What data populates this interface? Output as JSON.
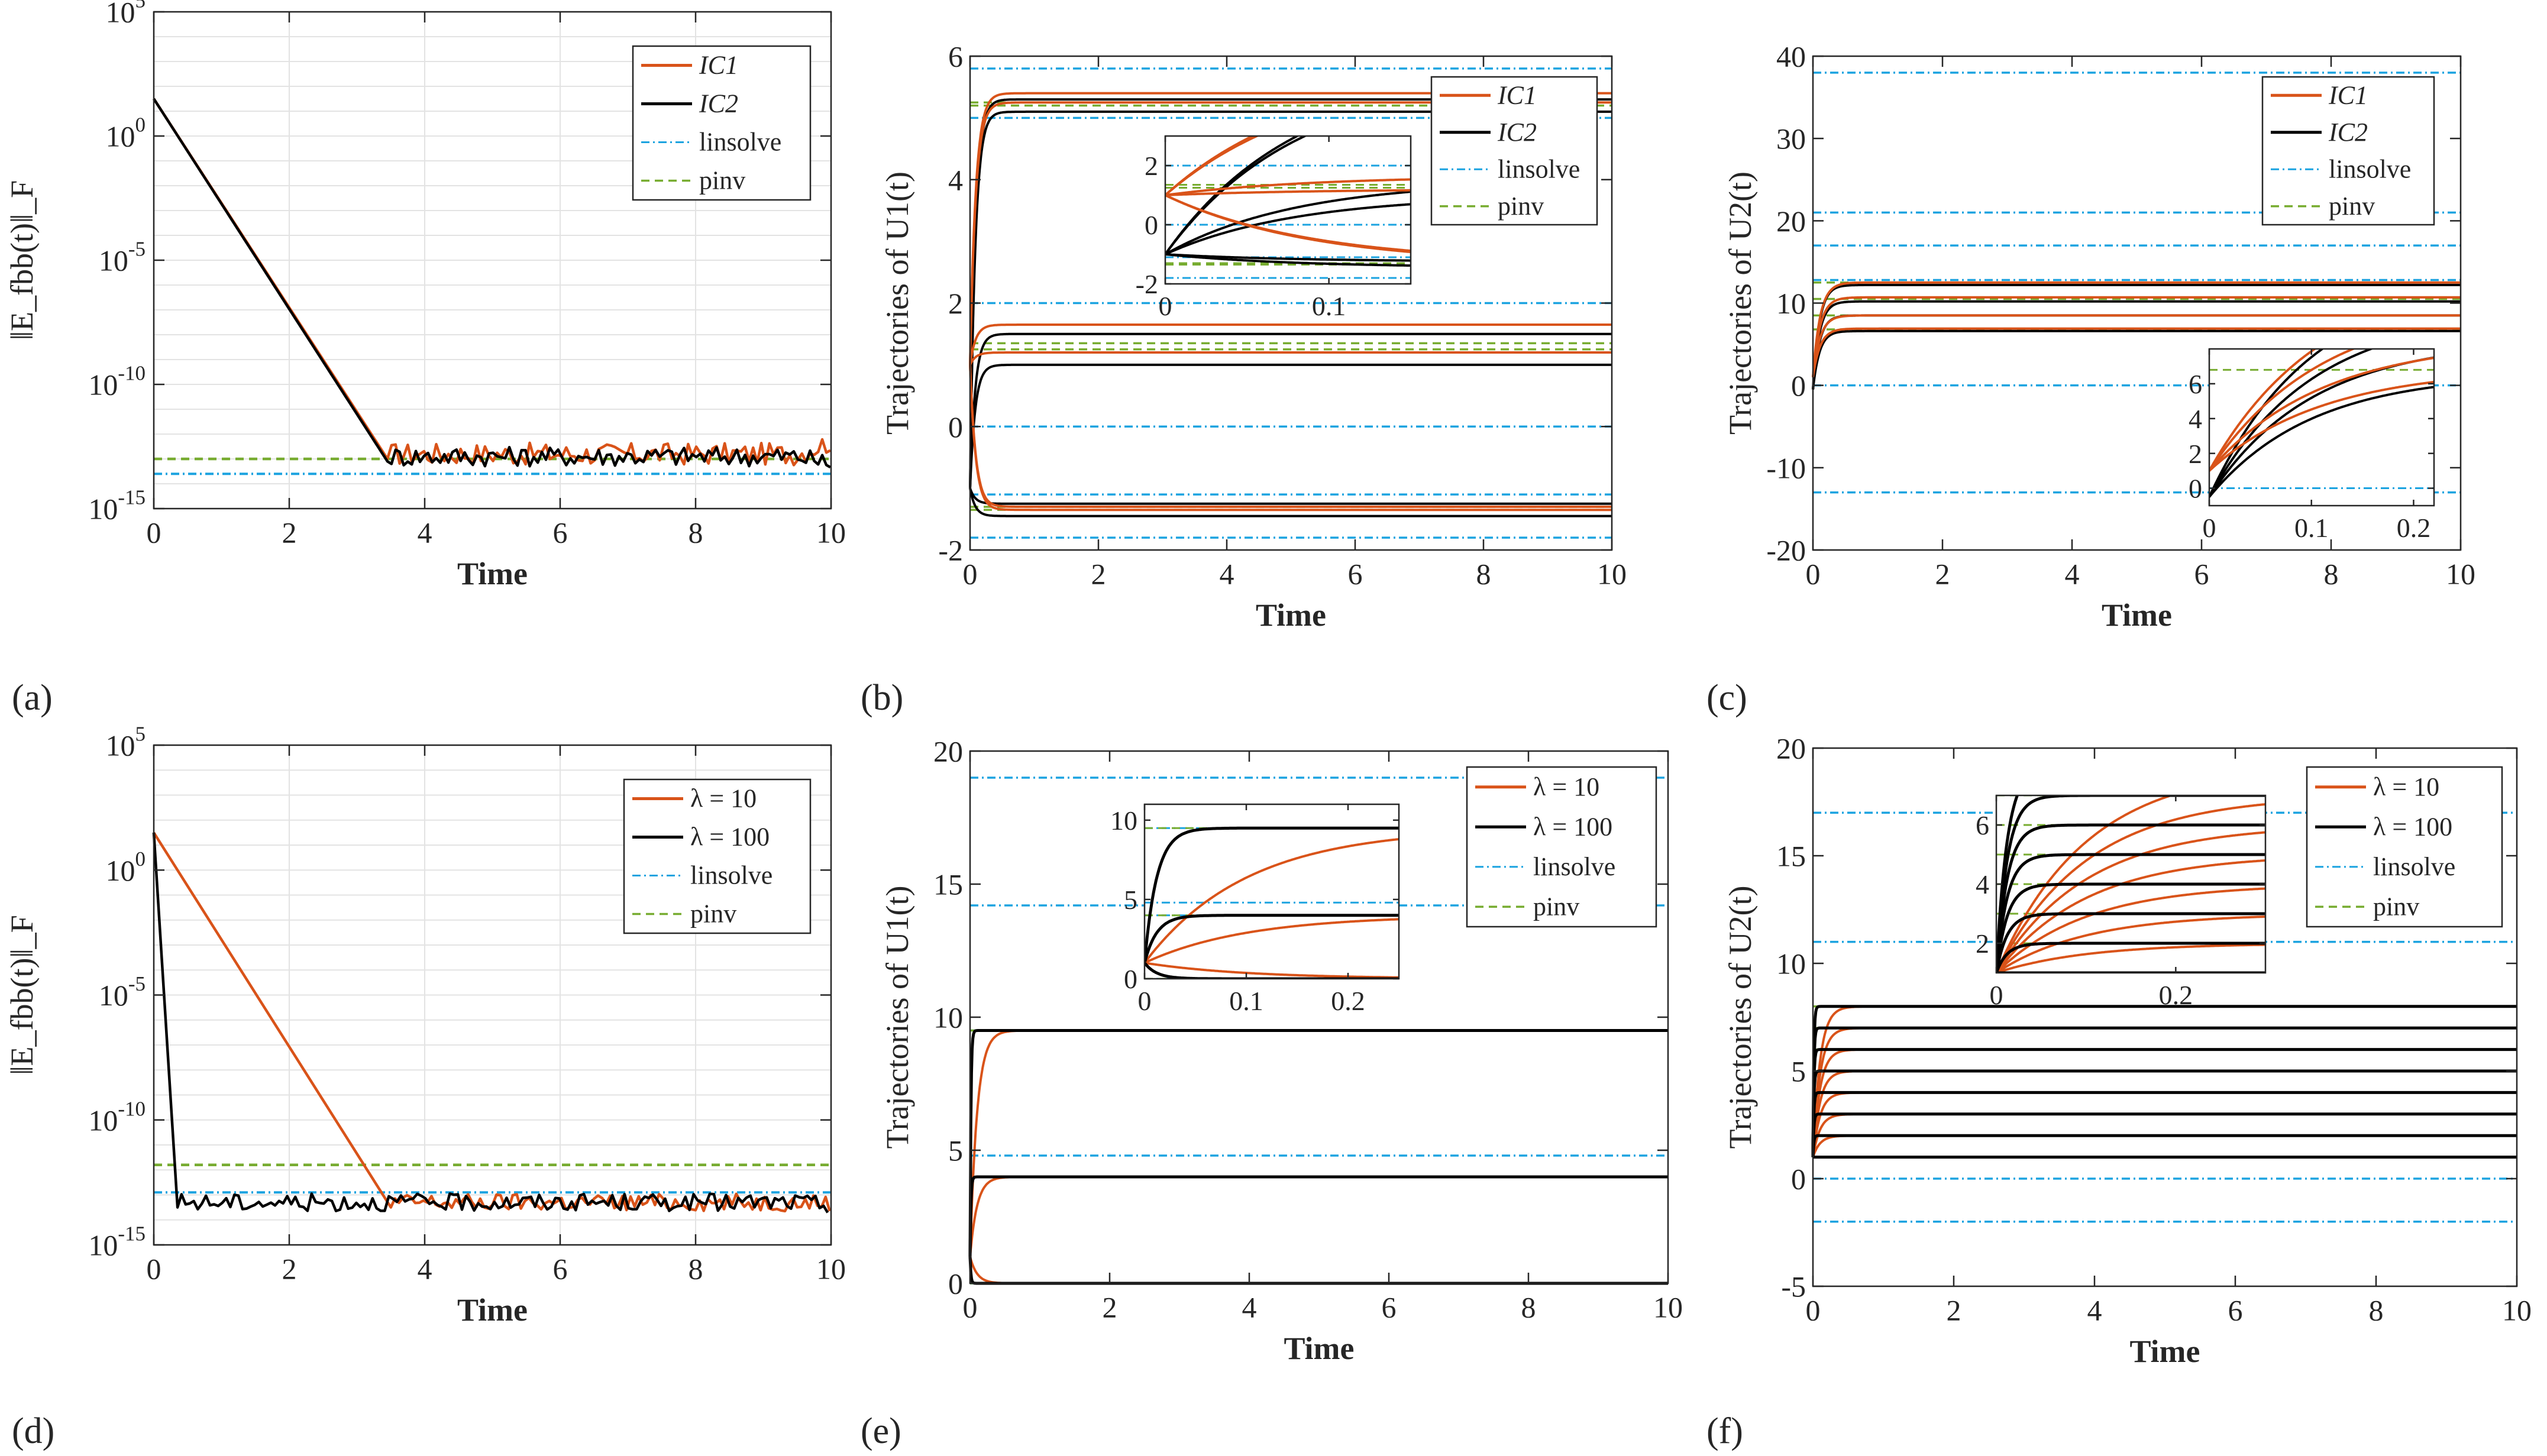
{
  "colors": {
    "orange": "#d95319",
    "black": "#000000",
    "linsolve": "#1ba3e0",
    "pinv": "#77ac30",
    "grid": "#e3e3e3",
    "axis": "#262626"
  },
  "chart_data": [
    {
      "id": "a",
      "panel_label": "(a)",
      "type": "line",
      "yscale": "log",
      "ylabel": "‖E_fbb(t)‖_F",
      "xlabel": "Time",
      "xlim": [
        0,
        10
      ],
      "ylim_log10": [
        -15,
        5
      ],
      "xticks": [
        "0",
        "2",
        "4",
        "6",
        "8",
        "10"
      ],
      "yticks": [
        {
          "base": "10",
          "exp": "-15"
        },
        {
          "base": "10",
          "exp": "-10"
        },
        {
          "base": "10",
          "exp": "-5"
        },
        {
          "base": "10",
          "exp": "0"
        },
        {
          "base": "10",
          "exp": "5"
        }
      ],
      "legend": [
        "IC1",
        "IC2",
        "linsolve",
        "pinv"
      ],
      "legend_position": "top-right",
      "series": [
        {
          "name": "IC1",
          "color": "orange",
          "start_log10": 1.5,
          "converge_time": 3.45,
          "floor_log10": -12.8,
          "noise": 0.45,
          "end_log10": -12.3
        },
        {
          "name": "IC2",
          "color": "black",
          "start_log10": 1.5,
          "converge_time": 3.45,
          "floor_log10": -12.9,
          "noise": 0.4,
          "end_log10": -13.2
        }
      ],
      "reference_log10": {
        "linsolve": -13.6,
        "pinv": -13.0
      }
    },
    {
      "id": "b",
      "panel_label": "(b)",
      "type": "line",
      "ylabel": "Trajectories of U1(t)",
      "xlabel": "Time",
      "xlim": [
        0,
        10
      ],
      "ylim": [
        -2,
        6
      ],
      "xticks": [
        "0",
        "2",
        "4",
        "6",
        "8",
        "10"
      ],
      "yticks": [
        "-2",
        "0",
        "2",
        "4",
        "6"
      ],
      "legend": [
        "IC1",
        "IC2",
        "linsolve",
        "pinv"
      ],
      "legend_position": "top-right",
      "targets": [
        5.3,
        5.2,
        1.5,
        1.2,
        -1.25,
        -1.35
      ],
      "start_ic1": 1.0,
      "start_ic2": -1.0,
      "ic1_offset": [
        0.1,
        0.05,
        0.15,
        0.0,
        -0.05,
        0.0
      ],
      "ic2_offset": [
        0.0,
        -0.1,
        0.0,
        -0.2,
        0.0,
        -0.1
      ],
      "tau": 0.08,
      "linsolve_lines": [
        5.8,
        5.0,
        2.0,
        0.0,
        -1.1,
        -1.8
      ],
      "pinv_lines": [
        5.25,
        5.2,
        1.35,
        1.25,
        -1.3,
        -1.35
      ],
      "inset": {
        "xlim": [
          0,
          0.15
        ],
        "ylim": [
          -2,
          3
        ],
        "xticks": [
          "0",
          "0.1"
        ],
        "yticks": [
          "-2",
          "0",
          "2"
        ]
      }
    },
    {
      "id": "c",
      "panel_label": "(c)",
      "type": "line",
      "ylabel": "Trajectories of U2(t)",
      "xlabel": "Time",
      "xlim": [
        0,
        10
      ],
      "ylim": [
        -20,
        40
      ],
      "xticks": [
        "0",
        "2",
        "4",
        "6",
        "8",
        "10"
      ],
      "yticks": [
        "-20",
        "-10",
        "0",
        "10",
        "20",
        "30",
        "40"
      ],
      "legend": [
        "IC1",
        "IC2",
        "linsolve",
        "pinv"
      ],
      "legend_position": "top-right",
      "targets": [
        12.2,
        10.5,
        8.5,
        6.8
      ],
      "start_ic1": 1.0,
      "start_ic2": -0.5,
      "ic1_offset": [
        0.3,
        0.2,
        0.0,
        0.1
      ],
      "ic2_offset": [
        0.0,
        -0.3,
        0.0,
        -0.2
      ],
      "tau": 0.1,
      "linsolve_lines": [
        38,
        21,
        17,
        12.8,
        0,
        -13
      ],
      "pinv_lines": [
        12.5,
        10.5,
        8.5,
        6.8
      ],
      "inset": {
        "xlim": [
          0,
          0.22
        ],
        "ylim": [
          -1,
          8
        ],
        "xticks": [
          "0",
          "0.1",
          "0.2"
        ],
        "yticks": [
          "0",
          "2",
          "4",
          "6"
        ]
      }
    },
    {
      "id": "d",
      "panel_label": "(d)",
      "type": "line",
      "yscale": "log",
      "ylabel": "‖E_fbb(t)‖_F",
      "xlabel": "Time",
      "xlim": [
        0,
        10
      ],
      "ylim_log10": [
        -15,
        5
      ],
      "xticks": [
        "0",
        "2",
        "4",
        "6",
        "8",
        "10"
      ],
      "yticks": [
        {
          "base": "10",
          "exp": "-15"
        },
        {
          "base": "10",
          "exp": "-10"
        },
        {
          "base": "10",
          "exp": "-5"
        },
        {
          "base": "10",
          "exp": "0"
        },
        {
          "base": "10",
          "exp": "5"
        }
      ],
      "legend": [
        "λ = 10",
        "λ = 100",
        "linsolve",
        "pinv"
      ],
      "legend_position": "top-right",
      "series": [
        {
          "name": "λ = 10",
          "color": "orange",
          "start_log10": 1.5,
          "converge_time": 3.5,
          "floor_log10": -13.3,
          "noise": 0.35,
          "end_log10": -13.3
        },
        {
          "name": "λ = 100",
          "color": "black",
          "start_log10": 1.5,
          "converge_time": 0.35,
          "floor_log10": -13.3,
          "noise": 0.35,
          "end_log10": -13.4
        }
      ],
      "reference_log10": {
        "linsolve": -12.9,
        "pinv": -11.8
      }
    },
    {
      "id": "e",
      "panel_label": "(e)",
      "type": "line",
      "ylabel": "Trajectories of U1(t)",
      "xlabel": "Time",
      "xlim": [
        0,
        10
      ],
      "ylim": [
        0,
        20
      ],
      "xticks": [
        "0",
        "2",
        "4",
        "6",
        "8",
        "10"
      ],
      "yticks": [
        "0",
        "5",
        "10",
        "15",
        "20"
      ],
      "legend": [
        "λ = 10",
        "λ = 100",
        "linsolve",
        "pinv"
      ],
      "legend_position": "top-right",
      "targets": [
        9.5,
        4.0,
        0.0
      ],
      "start": 1.0,
      "tau_lambda10": 0.1,
      "tau_lambda100": 0.012,
      "linsolve_lines": [
        19,
        14.2,
        9.5,
        4.8,
        4.0,
        0.0
      ],
      "pinv_lines": [
        9.5,
        4.0,
        0.0
      ],
      "inset": {
        "xlim": [
          0,
          0.25
        ],
        "ylim": [
          0,
          11
        ],
        "xticks": [
          "0",
          "0.1",
          "0.2"
        ],
        "yticks": [
          "0",
          "5",
          "10"
        ]
      }
    },
    {
      "id": "f",
      "panel_label": "(f)",
      "type": "line",
      "ylabel": "Trajectories of U2(t)",
      "xlabel": "Time",
      "xlim": [
        0,
        10
      ],
      "ylim": [
        -5,
        20
      ],
      "xticks": [
        "0",
        "2",
        "4",
        "6",
        "8",
        "10"
      ],
      "yticks": [
        "-5",
        "0",
        "5",
        "10",
        "15",
        "20"
      ],
      "legend": [
        "λ = 10",
        "λ = 100",
        "linsolve",
        "pinv"
      ],
      "legend_position": "top-right",
      "targets": [
        8,
        7,
        6,
        5,
        4,
        3,
        2,
        1
      ],
      "start": 1.0,
      "tau_lambda10": 0.1,
      "tau_lambda100": 0.012,
      "linsolve_lines": [
        17,
        11,
        0,
        -2
      ],
      "pinv_lines": [
        8,
        7,
        6,
        5,
        4,
        3,
        2,
        1
      ],
      "inset": {
        "xlim": [
          0,
          0.3
        ],
        "ylim": [
          1,
          7
        ],
        "xticks": [
          "0",
          "0.2"
        ],
        "yticks": [
          "2",
          "4",
          "6"
        ]
      }
    }
  ]
}
